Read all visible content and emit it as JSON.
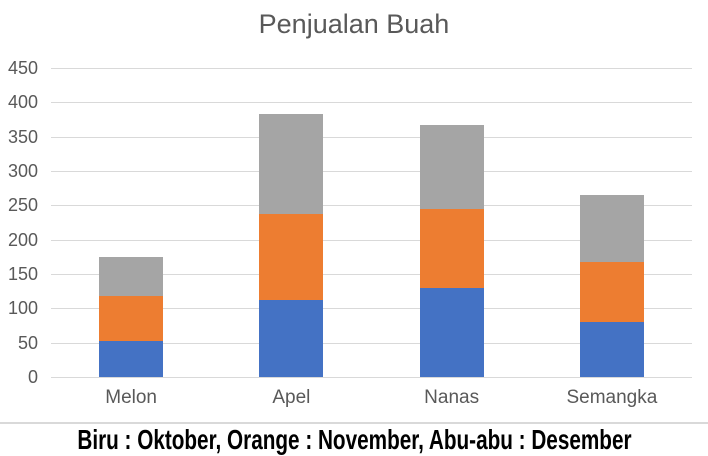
{
  "page": {
    "background": "#ffffff"
  },
  "chart_data": {
    "type": "bar",
    "stacked": true,
    "title": "Penjualan Buah",
    "categories": [
      "Melon",
      "Apel",
      "Nanas",
      "Semangka"
    ],
    "series": [
      {
        "name": "Oktober",
        "color": "#4472C4",
        "values": [
          53,
          112,
          129,
          80
        ]
      },
      {
        "name": "November",
        "color": "#ED7D31",
        "values": [
          65,
          126,
          116,
          87
        ]
      },
      {
        "name": "Desember",
        "color": "#A5A5A5",
        "values": [
          57,
          145,
          122,
          98
        ]
      }
    ],
    "totals": [
      175,
      383,
      367,
      265
    ],
    "xlabel": "",
    "ylabel": "",
    "ylim": [
      0,
      450
    ],
    "yticks": [
      0,
      50,
      100,
      150,
      200,
      250,
      300,
      350,
      400,
      450
    ],
    "grid": true,
    "legend_position": "none",
    "title_color": "#595959",
    "axis_text_color": "#595959",
    "gridline_color": "#D9D9D9"
  },
  "caption": {
    "text": "Biru : Oktober, Orange : November, Abu-abu : Desember",
    "color": "#000000"
  }
}
